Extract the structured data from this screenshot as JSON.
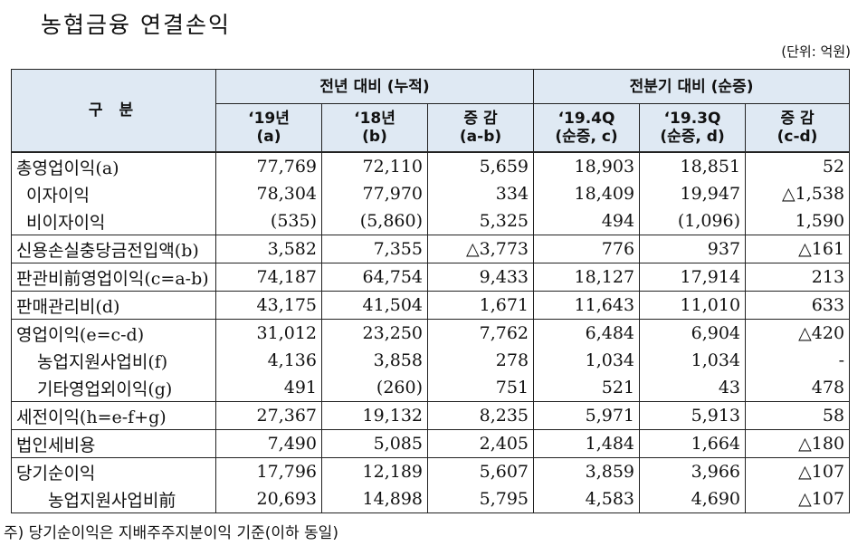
{
  "title": "농협금융 연결손익",
  "unit": "(단위: 억원)",
  "header": {
    "gubun": "구 분",
    "group1": "전년 대비 (누적)",
    "group2": "전분기 대비 (순증)",
    "columns": [
      {
        "line1": "‘19년",
        "line2": "(a)"
      },
      {
        "line1": "‘18년",
        "line2": "(b)"
      },
      {
        "line1": "증 감",
        "line2": "(a-b)"
      },
      {
        "line1": "‘19.4Q",
        "line2": "(순증, c)"
      },
      {
        "line1": "‘19.3Q",
        "line2": "(순증, d)"
      },
      {
        "line1": "증 감",
        "line2": "(c-d)"
      }
    ]
  },
  "rows": [
    {
      "label": "총영업이익(a)",
      "values": [
        "77,769",
        "72,110",
        "5,659",
        "18,903",
        "18,851",
        "52"
      ]
    },
    {
      "label": "이자이익",
      "values": [
        "78,304",
        "77,970",
        "334",
        "18,409",
        "19,947",
        "△1,538"
      ]
    },
    {
      "label": "비이자이익",
      "values": [
        "(535)",
        "(5,860)",
        "5,325",
        "494",
        "(1,096)",
        "1,590"
      ]
    },
    {
      "label": "신용손실충당금전입액(b)",
      "values": [
        "3,582",
        "7,355",
        "△3,773",
        "776",
        "937",
        "△161"
      ]
    },
    {
      "label": "판관비前영업이익(c=a-b)",
      "values": [
        "74,187",
        "64,754",
        "9,433",
        "18,127",
        "17,914",
        "213"
      ]
    },
    {
      "label": "판매관리비(d)",
      "values": [
        "43,175",
        "41,504",
        "1,671",
        "11,643",
        "11,010",
        "633"
      ]
    },
    {
      "label": "영업이익(e=c-d)",
      "values": [
        "31,012",
        "23,250",
        "7,762",
        "6,484",
        "6,904",
        "△420"
      ]
    },
    {
      "label": "농업지원사업비(f)",
      "values": [
        "4,136",
        "3,858",
        "278",
        "1,034",
        "1,034",
        "-"
      ]
    },
    {
      "label": "기타영업외이익(g)",
      "values": [
        "491",
        "(260)",
        "751",
        "521",
        "43",
        "478"
      ]
    },
    {
      "label": "세전이익(h=e-f+g)",
      "values": [
        "27,367",
        "19,132",
        "8,235",
        "5,971",
        "5,913",
        "58"
      ]
    },
    {
      "label": "법인세비용",
      "values": [
        "7,490",
        "5,085",
        "2,405",
        "1,484",
        "1,664",
        "△180"
      ]
    },
    {
      "label": "당기순이익",
      "values": [
        "17,796",
        "12,189",
        "5,607",
        "3,859",
        "3,966",
        "△107"
      ]
    },
    {
      "label": "농업지원사업비前",
      "values": [
        "20,693",
        "14,898",
        "5,795",
        "4,583",
        "4,690",
        "△107"
      ]
    }
  ],
  "note": "주) 당기순이익은 지배주주지분이익 기준(이하 동일)"
}
